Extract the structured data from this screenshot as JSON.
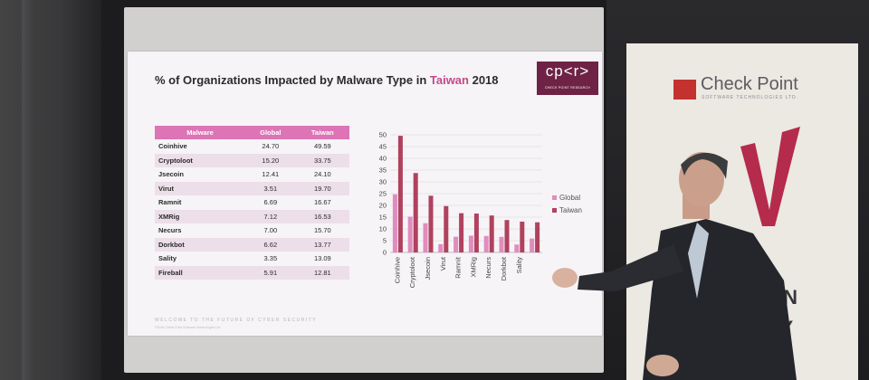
{
  "slide": {
    "title_part1": "% of Organizations Impacted by Malware Type in ",
    "title_highlight": "Taiwan",
    "title_part2": " 2018",
    "logo_text": "cp<r>",
    "logo_subtext": "CHECK POINT RESEARCH",
    "footer_text": "WELCOME TO THE FUTURE OF CYBER SECURITY",
    "footer_copyright": "©2018 Check Point Software Technologies Ltd."
  },
  "table": {
    "headers": [
      "Malware",
      "Global",
      "Taiwan"
    ],
    "rows": [
      [
        "Coinhive",
        "24.70",
        "49.59"
      ],
      [
        "Cryptoloot",
        "15.20",
        "33.75"
      ],
      [
        "Jsecoin",
        "12.41",
        "24.10"
      ],
      [
        "Virut",
        "3.51",
        "19.70"
      ],
      [
        "Ramnit",
        "6.69",
        "16.67"
      ],
      [
        "XMRig",
        "7.12",
        "16.53"
      ],
      [
        "Necurs",
        "7.00",
        "15.70"
      ],
      [
        "Dorkbot",
        "6.62",
        "13.77"
      ],
      [
        "Sality",
        "3.35",
        "13.09"
      ],
      [
        "Fireball",
        "5.91",
        "12.81"
      ]
    ]
  },
  "chart_data": {
    "type": "bar",
    "categories": [
      "Coinhive",
      "Cryptoloot",
      "Jsecoin",
      "Virut",
      "Ramnit",
      "XMRig",
      "Necurs",
      "Dorkbot",
      "Sality",
      "Fireball"
    ],
    "category_labels": [
      "Coinhive",
      "Cryptoloot",
      "Jsecoin",
      "Virut",
      "Ramnit",
      "XMRig",
      "Necurs",
      "Dorkbot",
      "Sality",
      ""
    ],
    "series": [
      {
        "name": "Global",
        "values": [
          24.7,
          15.2,
          12.41,
          3.51,
          6.69,
          7.12,
          7.0,
          6.62,
          3.35,
          5.91
        ],
        "color": "#e08cbf"
      },
      {
        "name": "Taiwan",
        "values": [
          49.59,
          33.75,
          24.1,
          19.7,
          16.67,
          16.53,
          15.7,
          13.77,
          13.09,
          12.81
        ],
        "color": "#b0415f"
      }
    ],
    "ylim": [
      0,
      50
    ],
    "yticks": [
      "0",
      "5",
      "10",
      "15",
      "20",
      "25",
      "30",
      "35",
      "40",
      "45",
      "50"
    ],
    "grid": true,
    "legend_position": "right"
  },
  "booth": {
    "brand_name": "Check Point",
    "brand_subtitle": "SOFTWARE TECHNOLOGIES LTD.",
    "banner_lines": [
      "ON",
      "TY"
    ]
  },
  "colors": {
    "accent": "#c24a8a",
    "table_header": "#dc74b6",
    "logo_bg": "#6e2346",
    "brand_red": "#c3322f"
  }
}
